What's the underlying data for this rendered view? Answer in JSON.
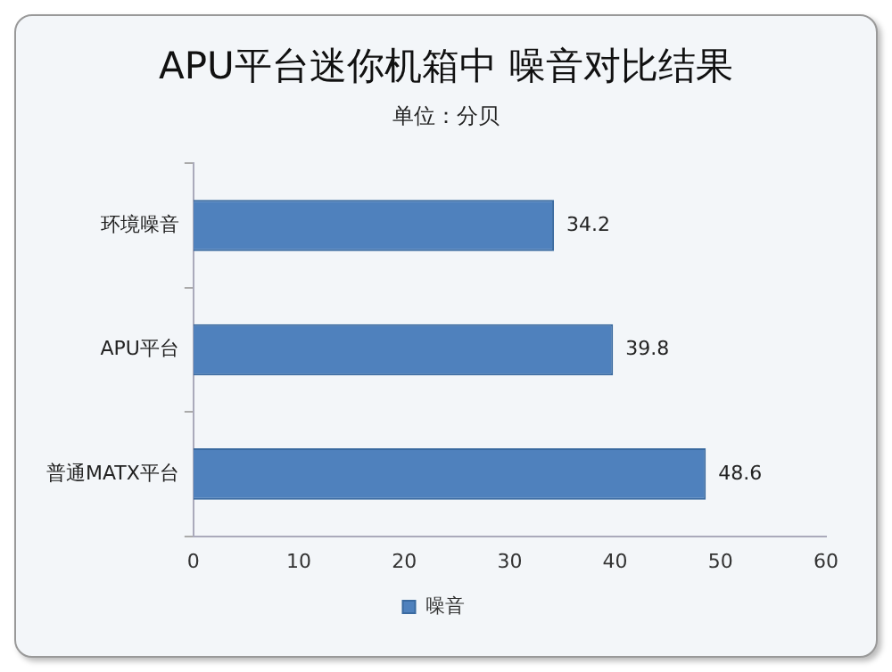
{
  "chart_data": {
    "type": "bar",
    "orientation": "horizontal",
    "title": "APU平台迷你机箱中 噪音对比结果",
    "subtitle": "单位：分贝",
    "categories": [
      "环境噪音",
      "APU平台",
      "普通MATX平台"
    ],
    "series": [
      {
        "name": "噪音",
        "color": "#4f81bd",
        "values": [
          34.2,
          39.8,
          48.6
        ]
      }
    ],
    "xlim": [
      0,
      60
    ],
    "xticks": [
      0,
      10,
      20,
      30,
      40,
      50,
      60
    ],
    "grid": false,
    "legend": "bottom",
    "data_labels": true
  }
}
